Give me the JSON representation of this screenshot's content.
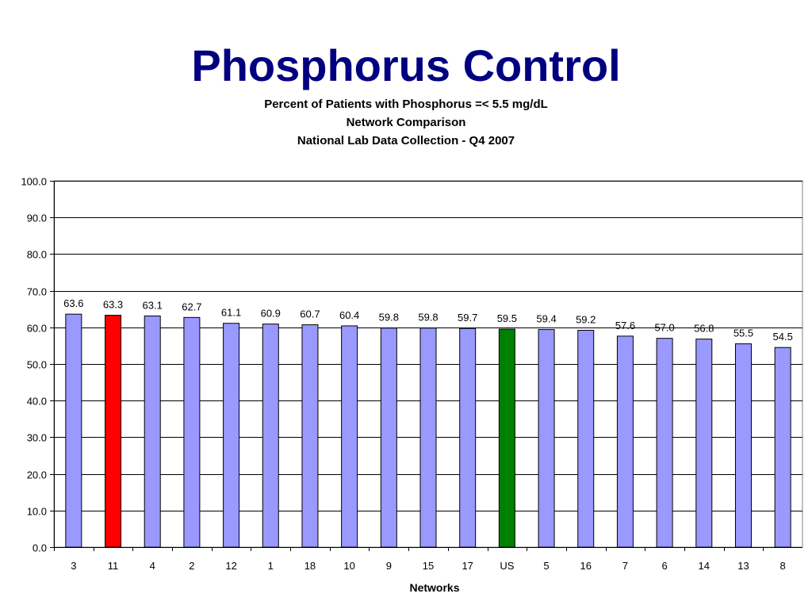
{
  "slide": {
    "title": "Phosphorus Control"
  },
  "chart_data": {
    "type": "bar",
    "title": [
      "Percent of Patients with Phosphorus =< 5.5 mg/dL",
      "Network Comparison",
      "National Lab Data Collection - Q4 2007"
    ],
    "xlabel": "Networks",
    "ylabel": "",
    "ylim": [
      0,
      100
    ],
    "yticks": [
      "0.0",
      "10.0",
      "20.0",
      "30.0",
      "40.0",
      "50.0",
      "60.0",
      "70.0",
      "80.0",
      "90.0",
      "100.0"
    ],
    "grid": true,
    "categories": [
      "3",
      "11",
      "4",
      "2",
      "12",
      "1",
      "18",
      "10",
      "9",
      "15",
      "17",
      "US",
      "5",
      "16",
      "7",
      "6",
      "14",
      "13",
      "8"
    ],
    "values": [
      63.6,
      63.3,
      63.1,
      62.7,
      61.1,
      60.9,
      60.7,
      60.4,
      59.8,
      59.8,
      59.7,
      59.5,
      59.4,
      59.2,
      57.6,
      57.0,
      56.8,
      55.5,
      54.5
    ],
    "value_labels": [
      "63.6",
      "63.3",
      "63.1",
      "62.7",
      "61.1",
      "60.9",
      "60.7",
      "60.4",
      "59.8",
      "59.8",
      "59.7",
      "59.5",
      "59.4",
      "59.2",
      "57.6",
      "57.0",
      "56.8",
      "55.5",
      "54.5"
    ],
    "colors": {
      "default": "#9999ff",
      "highlight_11": "#ff0000",
      "highlight_US": "#008000",
      "title": "#000080"
    },
    "bar_colors": [
      "#9999ff",
      "#ff0000",
      "#9999ff",
      "#9999ff",
      "#9999ff",
      "#9999ff",
      "#9999ff",
      "#9999ff",
      "#9999ff",
      "#9999ff",
      "#9999ff",
      "#008000",
      "#9999ff",
      "#9999ff",
      "#9999ff",
      "#9999ff",
      "#9999ff",
      "#9999ff",
      "#9999ff"
    ]
  }
}
